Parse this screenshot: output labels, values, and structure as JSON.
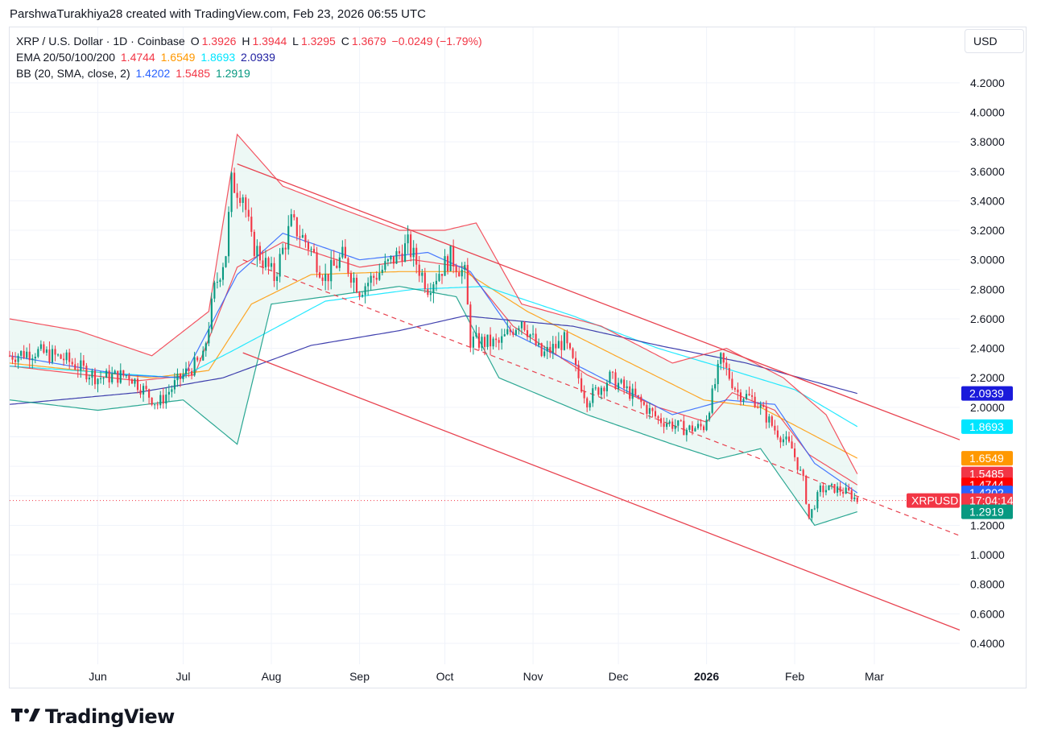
{
  "header": {
    "attribution": "ParshwaTurakhiya28 created with TradingView.com, Feb 23, 2026 06:55 UTC"
  },
  "legend": {
    "symbol": "XRP / U.S. Dollar · 1D · Coinbase",
    "o_label": "O",
    "o_value": "1.3926",
    "h_label": "H",
    "h_value": "1.3944",
    "l_label": "L",
    "l_value": "1.3295",
    "c_label": "C",
    "c_value": "1.3679",
    "change": "−0.0249 (−1.79%)",
    "ema_label": "EMA 20/50/100/200",
    "ema_values": [
      "1.4744",
      "1.6549",
      "1.8693",
      "2.0939"
    ],
    "bb_label": "BB (20, SMA, close, 2)",
    "bb_values": [
      "1.4202",
      "1.5485",
      "1.2919"
    ]
  },
  "currency_button": "USD",
  "logo_text": "TradingView",
  "colors": {
    "up": "#089981",
    "down": "#f23645",
    "ema20": "#f23645",
    "ema50": "#ff9800",
    "ema100": "#00e5ff",
    "ema200": "#1e1ea0",
    "bb_basis": "#2962ff",
    "bb_upper": "#f23645",
    "bb_lower": "#089981",
    "bb_fill": "#e8f6f3",
    "channel": "#e8424f"
  },
  "chart_data": {
    "type": "candlestick",
    "title": "XRP / U.S. Dollar · 1D · Coinbase",
    "ylim": [
      0.3,
      4.45
    ],
    "y_ticks": [
      "4.2000",
      "4.0000",
      "3.8000",
      "3.6000",
      "3.4000",
      "3.2000",
      "3.0000",
      "2.8000",
      "2.6000",
      "2.4000",
      "2.2000",
      "2.0000",
      "1.2000",
      "1.0000",
      "0.8000",
      "0.6000",
      "0.4000"
    ],
    "x_labels": [
      {
        "label": "Jun",
        "date": "2025-06-01"
      },
      {
        "label": "Jul",
        "date": "2025-07-01"
      },
      {
        "label": "Aug",
        "date": "2025-08-01"
      },
      {
        "label": "Sep",
        "date": "2025-09-01"
      },
      {
        "label": "Oct",
        "date": "2025-10-01"
      },
      {
        "label": "Nov",
        "date": "2025-11-01"
      },
      {
        "label": "Dec",
        "date": "2025-12-01"
      },
      {
        "label": "2026",
        "date": "2026-01-01",
        "bold": true
      },
      {
        "label": "Feb",
        "date": "2026-02-01"
      },
      {
        "label": "Mar",
        "date": "2026-03-01"
      }
    ],
    "x_start": "2025-05-01",
    "x_end": "2026-03-31",
    "last_date": "2026-02-23",
    "price_points": [
      [
        "2025-05-01",
        2.35
      ],
      [
        "2025-05-10",
        2.38
      ],
      [
        "2025-05-20",
        2.33
      ],
      [
        "2025-06-01",
        2.2
      ],
      [
        "2025-06-12",
        2.22
      ],
      [
        "2025-06-22",
        2.02
      ],
      [
        "2025-07-01",
        2.22
      ],
      [
        "2025-07-08",
        2.33
      ],
      [
        "2025-07-12",
        2.8
      ],
      [
        "2025-07-16",
        3.05
      ],
      [
        "2025-07-18",
        3.52
      ],
      [
        "2025-07-22",
        3.45
      ],
      [
        "2025-07-25",
        3.12
      ],
      [
        "2025-08-02",
        2.88
      ],
      [
        "2025-08-08",
        3.25
      ],
      [
        "2025-08-14",
        3.1
      ],
      [
        "2025-08-20",
        2.88
      ],
      [
        "2025-08-26",
        3.02
      ],
      [
        "2025-09-01",
        2.8
      ],
      [
        "2025-09-10",
        2.95
      ],
      [
        "2025-09-18",
        3.1
      ],
      [
        "2025-09-25",
        2.82
      ],
      [
        "2025-10-03",
        3.02
      ],
      [
        "2025-10-08",
        2.9
      ],
      [
        "2025-10-10",
        2.45
      ],
      [
        "2025-10-20",
        2.43
      ],
      [
        "2025-10-28",
        2.6
      ],
      [
        "2025-11-04",
        2.35
      ],
      [
        "2025-11-12",
        2.45
      ],
      [
        "2025-11-20",
        2.05
      ],
      [
        "2025-11-28",
        2.2
      ],
      [
        "2025-12-05",
        2.1
      ],
      [
        "2025-12-15",
        1.92
      ],
      [
        "2025-12-25",
        1.85
      ],
      [
        "2025-12-31",
        1.87
      ],
      [
        "2026-01-03",
        2.08
      ],
      [
        "2026-01-06",
        2.32
      ],
      [
        "2026-01-12",
        2.1
      ],
      [
        "2026-01-18",
        2.05
      ],
      [
        "2026-01-25",
        1.85
      ],
      [
        "2026-01-31",
        1.72
      ],
      [
        "2026-02-04",
        1.5
      ],
      [
        "2026-02-06",
        1.25
      ],
      [
        "2026-02-10",
        1.44
      ],
      [
        "2026-02-15",
        1.45
      ],
      [
        "2026-02-20",
        1.42
      ],
      [
        "2026-02-23",
        1.3679
      ]
    ],
    "series": [
      {
        "name": "EMA 20",
        "values": [
          [
            "2025-05-01",
            2.28
          ],
          [
            "2025-06-15",
            2.18
          ],
          [
            "2025-07-05",
            2.22
          ],
          [
            "2025-07-20",
            2.95
          ],
          [
            "2025-08-05",
            3.12
          ],
          [
            "2025-09-01",
            2.95
          ],
          [
            "2025-09-20",
            3.0
          ],
          [
            "2025-10-08",
            2.95
          ],
          [
            "2025-10-25",
            2.55
          ],
          [
            "2025-11-20",
            2.22
          ],
          [
            "2025-12-15",
            2.0
          ],
          [
            "2026-01-01",
            1.9
          ],
          [
            "2026-01-10",
            2.1
          ],
          [
            "2026-01-25",
            1.98
          ],
          [
            "2026-02-06",
            1.68
          ],
          [
            "2026-02-23",
            1.4744
          ]
        ]
      },
      {
        "name": "EMA 50",
        "values": [
          [
            "2025-05-01",
            2.3
          ],
          [
            "2025-06-20",
            2.2
          ],
          [
            "2025-07-10",
            2.25
          ],
          [
            "2025-07-25",
            2.7
          ],
          [
            "2025-08-15",
            2.9
          ],
          [
            "2025-09-15",
            2.92
          ],
          [
            "2025-10-08",
            2.92
          ],
          [
            "2025-10-30",
            2.65
          ],
          [
            "2025-11-30",
            2.35
          ],
          [
            "2025-12-31",
            2.05
          ],
          [
            "2026-01-20",
            2.0
          ],
          [
            "2026-02-23",
            1.6549
          ]
        ]
      },
      {
        "name": "EMA 100",
        "values": [
          [
            "2025-05-01",
            2.28
          ],
          [
            "2025-06-30",
            2.2
          ],
          [
            "2025-07-20",
            2.4
          ],
          [
            "2025-08-20",
            2.72
          ],
          [
            "2025-09-20",
            2.8
          ],
          [
            "2025-10-15",
            2.82
          ],
          [
            "2025-11-15",
            2.62
          ],
          [
            "2025-12-15",
            2.4
          ],
          [
            "2026-01-10",
            2.25
          ],
          [
            "2026-02-01",
            2.12
          ],
          [
            "2026-02-23",
            1.8693
          ]
        ]
      },
      {
        "name": "EMA 200",
        "values": [
          [
            "2025-05-01",
            2.02
          ],
          [
            "2025-06-15",
            2.1
          ],
          [
            "2025-07-15",
            2.2
          ],
          [
            "2025-08-15",
            2.42
          ],
          [
            "2025-09-15",
            2.52
          ],
          [
            "2025-10-08",
            2.62
          ],
          [
            "2025-11-15",
            2.55
          ],
          [
            "2025-12-15",
            2.42
          ],
          [
            "2026-01-15",
            2.3
          ],
          [
            "2026-02-23",
            2.0939
          ]
        ]
      },
      {
        "name": "BB basis",
        "values": [
          [
            "2025-05-01",
            2.35
          ],
          [
            "2025-06-10",
            2.22
          ],
          [
            "2025-07-01",
            2.2
          ],
          [
            "2025-07-20",
            2.9
          ],
          [
            "2025-08-05",
            3.18
          ],
          [
            "2025-09-01",
            3.0
          ],
          [
            "2025-09-25",
            3.05
          ],
          [
            "2025-10-10",
            2.92
          ],
          [
            "2025-10-25",
            2.5
          ],
          [
            "2025-11-20",
            2.25
          ],
          [
            "2025-12-20",
            1.95
          ],
          [
            "2026-01-08",
            2.05
          ],
          [
            "2026-01-25",
            2.02
          ],
          [
            "2026-02-08",
            1.62
          ],
          [
            "2026-02-23",
            1.4202
          ]
        ]
      },
      {
        "name": "BB upper",
        "values": [
          [
            "2025-05-01",
            2.6
          ],
          [
            "2025-05-25",
            2.52
          ],
          [
            "2025-06-20",
            2.35
          ],
          [
            "2025-07-10",
            2.65
          ],
          [
            "2025-07-20",
            3.85
          ],
          [
            "2025-08-05",
            3.5
          ],
          [
            "2025-08-25",
            3.35
          ],
          [
            "2025-09-15",
            3.2
          ],
          [
            "2025-10-01",
            3.2
          ],
          [
            "2025-10-12",
            3.25
          ],
          [
            "2025-10-28",
            2.7
          ],
          [
            "2025-11-25",
            2.55
          ],
          [
            "2025-12-20",
            2.3
          ],
          [
            "2026-01-08",
            2.4
          ],
          [
            "2026-01-28",
            2.2
          ],
          [
            "2026-02-12",
            1.95
          ],
          [
            "2026-02-23",
            1.5485
          ]
        ]
      },
      {
        "name": "BB lower",
        "values": [
          [
            "2025-05-01",
            2.05
          ],
          [
            "2025-06-01",
            1.98
          ],
          [
            "2025-07-01",
            2.05
          ],
          [
            "2025-07-20",
            1.75
          ],
          [
            "2025-08-01",
            2.7
          ],
          [
            "2025-08-20",
            2.75
          ],
          [
            "2025-09-15",
            2.82
          ],
          [
            "2025-10-05",
            2.75
          ],
          [
            "2025-10-20",
            2.2
          ],
          [
            "2025-11-20",
            1.95
          ],
          [
            "2025-12-20",
            1.75
          ],
          [
            "2026-01-05",
            1.65
          ],
          [
            "2026-01-20",
            1.72
          ],
          [
            "2026-02-08",
            1.2
          ],
          [
            "2026-02-23",
            1.2919
          ]
        ]
      }
    ],
    "channel": {
      "upper": [
        [
          "2025-07-20",
          3.65
        ],
        [
          "2026-03-31",
          1.78
        ]
      ],
      "lower": [
        [
          "2025-07-22",
          2.37
        ],
        [
          "2026-03-31",
          0.49
        ]
      ],
      "mid_dashed": [
        [
          "2025-07-22",
          3.0
        ],
        [
          "2026-03-31",
          1.13
        ]
      ]
    },
    "price_axis_badges": [
      {
        "text": "2.0939",
        "value": 2.0939,
        "color": "#1a1adb"
      },
      {
        "text": "1.8693",
        "value": 1.8693,
        "color": "#00e5ff"
      },
      {
        "text": "1.6549",
        "value": 1.6549,
        "color": "#ff9800"
      },
      {
        "text": "1.5485",
        "value": 1.5485,
        "color": "#f23645"
      },
      {
        "text": "1.4744",
        "value": 1.4744,
        "color": "#ff0000"
      },
      {
        "text": "1.4202",
        "value": 1.4202,
        "color": "#2962ff"
      },
      {
        "text": "17:04:14",
        "value": 1.3679,
        "color": "#f23645",
        "label": "XRPUSD"
      },
      {
        "text": "1.2919",
        "value": 1.2919,
        "color": "#089981"
      }
    ]
  }
}
